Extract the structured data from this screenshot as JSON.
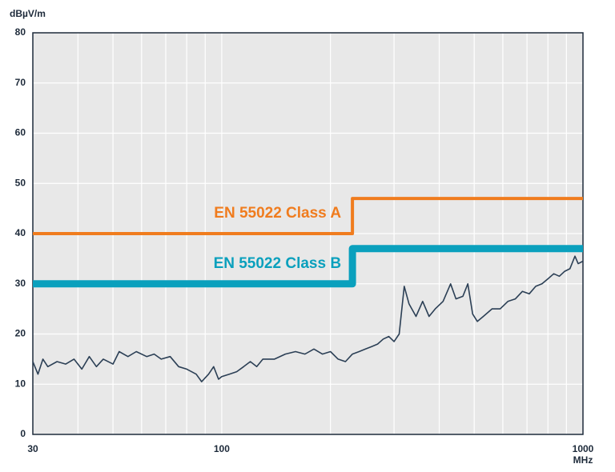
{
  "chart_data": {
    "type": "line",
    "y_unit": "dBµV/m",
    "x_unit": "MHz",
    "log_x": true,
    "grid": true,
    "xlim": [
      30,
      1000
    ],
    "xticks": [
      30,
      100,
      1000
    ],
    "xminor_ticks": [
      40,
      50,
      60,
      70,
      80,
      90,
      200,
      300,
      400,
      500,
      600,
      700,
      800,
      900
    ],
    "ylim": [
      0,
      80
    ],
    "yticks": [
      0,
      10,
      20,
      30,
      40,
      50,
      60,
      70,
      80
    ],
    "series": [
      {
        "name": "EN 55022 Class A",
        "color": "#f07c1e",
        "x": [
          30,
          230,
          230,
          1000
        ],
        "values": [
          40,
          40,
          47,
          47
        ]
      },
      {
        "name": "EN 55022 Class B",
        "color": "#0aa0bd",
        "x": [
          30,
          230,
          230,
          1000
        ],
        "values": [
          30,
          30,
          37,
          37
        ]
      },
      {
        "color": "#2b3f55",
        "x": [
          30,
          31,
          32,
          33,
          35,
          37,
          39,
          41,
          43,
          45,
          47,
          50,
          52,
          55,
          58,
          62,
          65,
          68,
          72,
          76,
          80,
          85,
          88,
          92,
          95,
          98,
          100,
          105,
          110,
          115,
          120,
          125,
          130,
          140,
          150,
          160,
          170,
          180,
          190,
          200,
          210,
          220,
          230,
          240,
          250,
          260,
          270,
          280,
          290,
          300,
          310,
          320,
          330,
          345,
          360,
          375,
          390,
          410,
          430,
          445,
          465,
          480,
          495,
          510,
          530,
          560,
          590,
          620,
          650,
          680,
          710,
          740,
          770,
          800,
          830,
          860,
          890,
          920,
          950,
          970,
          1000
        ],
        "values": [
          14.5,
          12,
          15,
          13.5,
          14.5,
          14,
          15,
          13,
          15.5,
          13.5,
          15,
          14,
          16.5,
          15.5,
          16.5,
          15.5,
          16,
          15,
          15.5,
          13.5,
          13,
          12,
          10.5,
          12,
          13.5,
          11,
          11.5,
          12,
          12.5,
          13.5,
          14.5,
          13.5,
          15,
          15,
          16,
          16.5,
          16,
          17,
          16,
          16.5,
          15,
          14.5,
          16,
          16.5,
          17,
          17.5,
          18,
          19,
          19.5,
          18.5,
          20,
          29.5,
          26,
          23.5,
          26.5,
          23.5,
          25,
          26.5,
          30,
          27,
          27.5,
          30,
          24,
          22.5,
          23.5,
          25,
          25,
          26.5,
          27,
          28.5,
          28,
          29.5,
          30,
          31,
          32,
          31.5,
          32.5,
          33,
          35.5,
          34,
          34.5
        ]
      }
    ]
  }
}
